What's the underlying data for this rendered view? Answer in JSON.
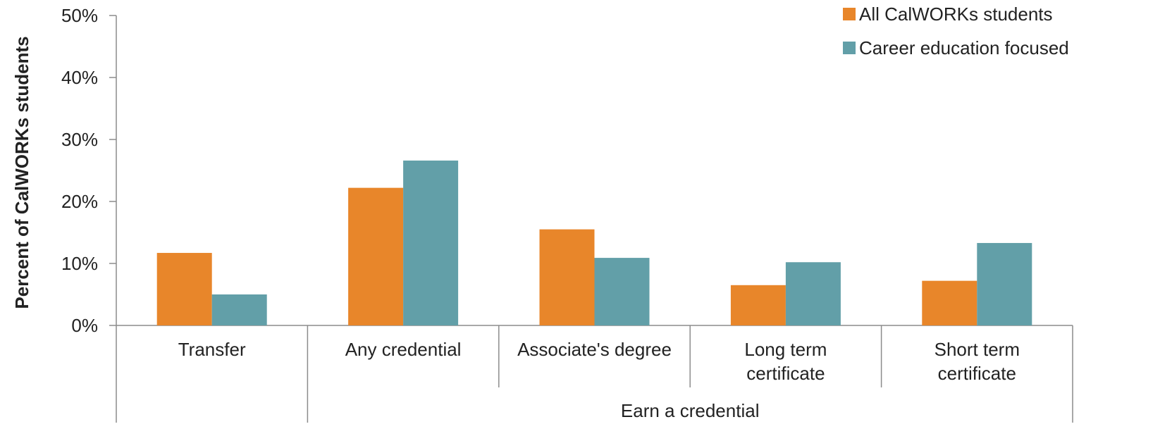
{
  "chart_data": {
    "type": "bar",
    "ylabel": "Percent of CalWORKs students",
    "ylim": [
      0,
      50
    ],
    "y_ticks": [
      "0%",
      "10%",
      "20%",
      "30%",
      "40%",
      "50%"
    ],
    "categories": [
      "Transfer",
      "Any credential",
      "Associate's degree",
      "Long term certificate",
      "Short term certificate"
    ],
    "category_lines": [
      [
        "Transfer"
      ],
      [
        "Any credential"
      ],
      [
        "Associate's degree"
      ],
      [
        "Long term",
        "certificate"
      ],
      [
        "Short term",
        "certificate"
      ]
    ],
    "groups": [
      {
        "label": "",
        "categories": [
          "Transfer"
        ]
      },
      {
        "label": "Earn a credential",
        "categories": [
          "Any credential",
          "Associate's degree",
          "Long term certificate",
          "Short term certificate"
        ]
      }
    ],
    "series": [
      {
        "name": "All CalWORKs students",
        "color": "#E8862A",
        "values": [
          11.7,
          22.2,
          15.5,
          6.5,
          7.2
        ]
      },
      {
        "name": "Career education focused",
        "color": "#629FA8",
        "values": [
          5.0,
          26.6,
          10.9,
          10.2,
          13.3
        ]
      }
    ],
    "legend_position": "top-right",
    "grid": false
  }
}
